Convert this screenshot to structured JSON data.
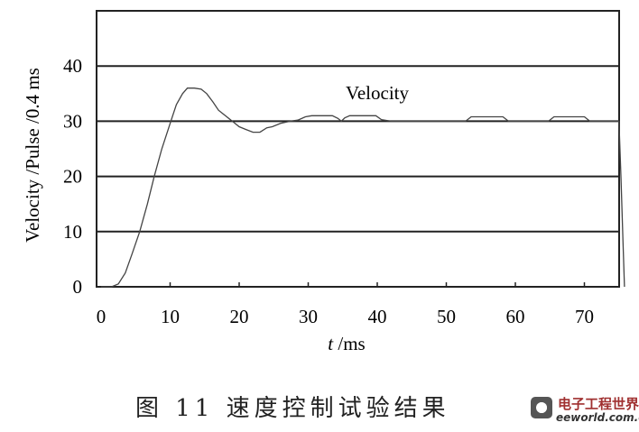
{
  "chart_data": {
    "type": "line",
    "title": "",
    "xlabel_italic": "t",
    "xlabel_rest": " /ms",
    "ylabel": "Velocity /Pulse /0.4 ms",
    "xlim": [
      0,
      75
    ],
    "ylim": [
      0,
      50
    ],
    "xticks": [
      0,
      10,
      20,
      30,
      40,
      50,
      60,
      70
    ],
    "yticks": [
      0,
      10,
      20,
      30,
      40
    ],
    "grid": "horizontal",
    "annotation": "Velocity",
    "series": [
      {
        "x": [
          0,
          1.5,
          2.5,
          3.5,
          4.5,
          5.6,
          6.7,
          7.7,
          8.8,
          10.1,
          10.9,
          11.8,
          12.5,
          13.5,
          14.5,
          15.3,
          16.2,
          17.0,
          18.0,
          19.0,
          20.0,
          21.0,
          22.0,
          23.0,
          24.0,
          24.8,
          26.0,
          27.4,
          28.5,
          29.6,
          30.5,
          33.5,
          34.3,
          34.8,
          35.3,
          36.0,
          39.8,
          40.6,
          42,
          52.8,
          53.6,
          58.2,
          59.0,
          64.8,
          65.6,
          70.0,
          70.8,
          75.0,
          75.3,
          75.6,
          75.8
        ],
        "y": [
          0,
          0,
          0.5,
          2.5,
          6,
          10,
          15,
          20,
          25,
          30,
          33,
          35,
          36,
          36,
          35.8,
          35,
          33.5,
          32,
          31,
          30,
          29,
          28.5,
          28,
          28,
          28.8,
          29,
          29.6,
          30,
          30.2,
          30.8,
          31,
          31,
          30.5,
          30,
          30.6,
          31,
          31,
          30.3,
          30,
          30,
          30.8,
          30.8,
          30,
          30,
          30.8,
          30.8,
          30,
          30,
          20,
          8,
          0
        ]
      }
    ]
  },
  "caption": "图 11   速度控制试验结果",
  "watermark": {
    "cn": "电子工程世界",
    "en": "eeworld.com.cn"
  }
}
